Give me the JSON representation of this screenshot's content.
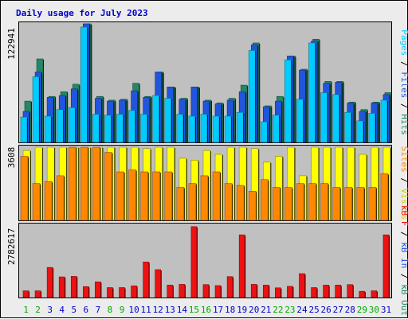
{
  "chart_data": {
    "type": "bar",
    "title": "Daily usage for July 2023",
    "categories": [
      "1",
      "2",
      "3",
      "4",
      "5",
      "6",
      "7",
      "8",
      "9",
      "10",
      "11",
      "12",
      "13",
      "14",
      "15",
      "16",
      "17",
      "18",
      "19",
      "20",
      "21",
      "22",
      "23",
      "24",
      "25",
      "26",
      "27",
      "28",
      "29",
      "30",
      "31"
    ],
    "weekend_days": [
      1,
      2,
      8,
      9,
      15,
      16,
      22,
      23,
      29,
      30
    ],
    "panels": [
      {
        "name": "top",
        "ytick": "122941",
        "ymax": 122941,
        "series": [
          {
            "name": "Pages",
            "color": "#00ccff",
            "values": [
              27000,
              70000,
              28000,
              35000,
              37000,
              122941,
              30000,
              29000,
              30000,
              34000,
              30000,
              50000,
              47000,
              30000,
              28000,
              30000,
              28000,
              28000,
              32000,
              98000,
              22000,
              29000,
              88000,
              46000,
              106000,
              53000,
              51000,
              32000,
              23000,
              31000,
              45000
            ]
          },
          {
            "name": "Files",
            "color": "#2255dd",
            "values": [
              33000,
              75000,
              48000,
              50000,
              57000,
              136000,
              47000,
              44000,
              45000,
              55000,
              48000,
              75000,
              59000,
              46000,
              59000,
              44000,
              41000,
              45000,
              54000,
              104000,
              38000,
              44000,
              92000,
              77000,
              108000,
              63000,
              64000,
              42000,
              33000,
              42000,
              51000
            ]
          },
          {
            "name": "Hits",
            "color": "#228866",
            "values": [
              44000,
              89000,
              49000,
              54000,
              62000,
              140000,
              49000,
              45000,
              46000,
              63000,
              49000,
              75000,
              59000,
              47000,
              59000,
              45000,
              42000,
              47000,
              61000,
              106000,
              39000,
              49000,
              92000,
              78000,
              110000,
              65000,
              65000,
              43000,
              35000,
              43000,
              53000
            ]
          }
        ]
      },
      {
        "name": "middle",
        "ytick": "3608",
        "ymax": 3608,
        "series": [
          {
            "name": "Sites",
            "color": "#ff8800",
            "values": [
              3300,
              1900,
              2000,
              2300,
              4400,
              4700,
              4700,
              3500,
              2500,
              2600,
              2500,
              2500,
              2500,
              1700,
              1900,
              2300,
              2500,
              1900,
              1800,
              1500,
              2100,
              1700,
              1700,
              1900,
              1900,
              1900,
              1700,
              1700,
              1700,
              1700,
              2400
            ]
          },
          {
            "name": "Visits",
            "color": "#ffff00",
            "values": [
              3600,
              4000,
              5000,
              6000,
              6000,
              4800,
              4700,
              4000,
              4900,
              4700,
              3700,
              4100,
              4700,
              3200,
              3100,
              3600,
              3400,
              4100,
              4100,
              3700,
              3000,
              3300,
              3800,
              2300,
              4100,
              4200,
              3900,
              3800,
              3400,
              3900,
              4300
            ]
          }
        ]
      },
      {
        "name": "bottom",
        "ytick": "2782617",
        "ymax": 2782617,
        "series": [
          {
            "name": "KB F",
            "color": "#ee1111",
            "values": [
              270000,
              270000,
              1210000,
              830000,
              850000,
              440000,
              630000,
              400000,
              400000,
              470000,
              1430000,
              1120000,
              500000,
              530000,
              2850000,
              520000,
              480000,
              840000,
              2520000,
              530000,
              500000,
              390000,
              450000,
              960000,
              400000,
              500000,
              500000,
              520000,
              250000,
              270000,
              2520000
            ]
          }
        ]
      }
    ],
    "right_labels": {
      "top": [
        {
          "text": "Pages",
          "color": "#00ccff"
        },
        {
          "text": " / ",
          "color": "#000000"
        },
        {
          "text": "Files",
          "color": "#2255dd"
        },
        {
          "text": " / ",
          "color": "#000000"
        },
        {
          "text": "Hits",
          "color": "#228866"
        }
      ],
      "middle": [
        {
          "text": "Sites",
          "color": "#ff8800"
        },
        {
          "text": " / ",
          "color": "#000000"
        },
        {
          "text": "Visits",
          "color": "#cccc00"
        }
      ],
      "bottom": [
        {
          "text": "kB F",
          "color": "#ee1111"
        },
        {
          "text": " / ",
          "color": "#000000"
        },
        {
          "text": "kB In",
          "color": "#2255dd"
        },
        {
          "text": " / ",
          "color": "#000000"
        },
        {
          "text": "kB Out",
          "color": "#228866"
        }
      ]
    },
    "colors": {
      "plot_background": "#c0c0c0",
      "weekday_label": "#0000cc",
      "weekend_label": "#00aa00"
    }
  }
}
